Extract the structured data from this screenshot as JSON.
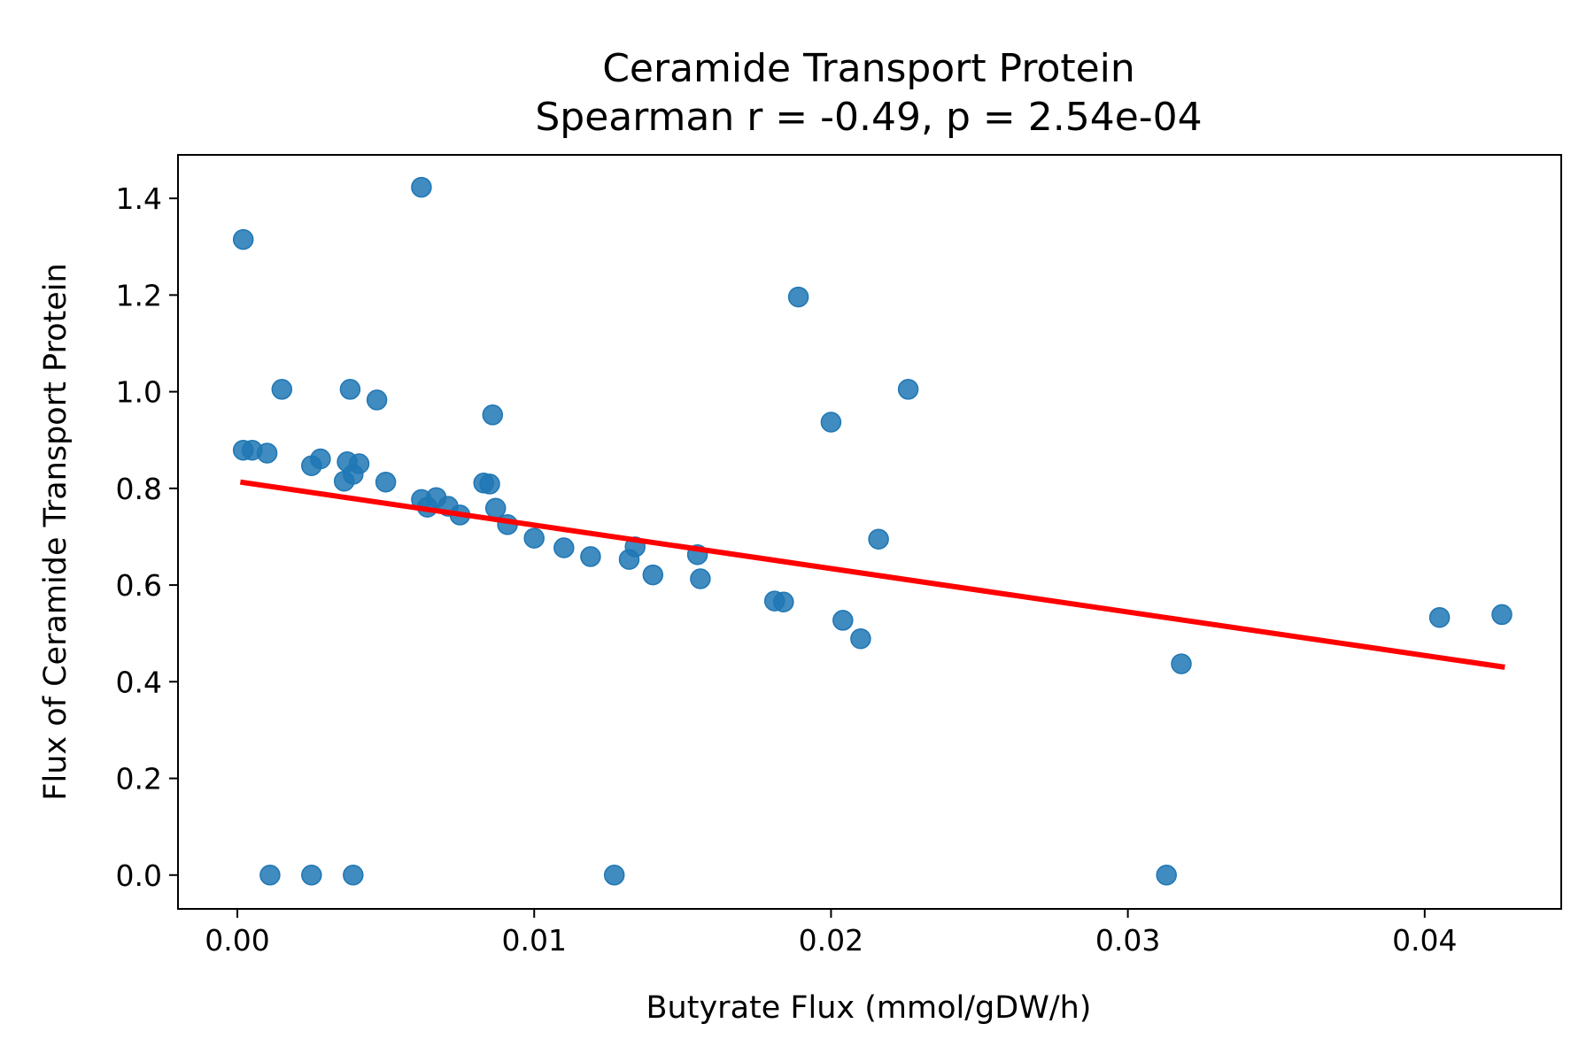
{
  "chart_data": {
    "type": "scatter",
    "title": "Ceramide Transport Protein",
    "subtitle": "Spearman r = -0.49, p = 2.54e-04",
    "xlabel": "Butyrate Flux (mmol/gDW/h)",
    "ylabel": "Flux of Ceramide Transport Protein",
    "xlim": [
      -0.002,
      0.0446
    ],
    "ylim": [
      -0.07,
      1.49
    ],
    "xticks": [
      0.0,
      0.01,
      0.02,
      0.03,
      0.04
    ],
    "xtick_labels": [
      "0.00",
      "0.01",
      "0.02",
      "0.03",
      "0.04"
    ],
    "yticks": [
      0.0,
      0.2,
      0.4,
      0.6,
      0.8,
      1.0,
      1.2,
      1.4
    ],
    "ytick_labels": [
      "0.0",
      "0.2",
      "0.4",
      "0.6",
      "0.8",
      "1.0",
      "1.2",
      "1.4"
    ],
    "grid": false,
    "legend": "none",
    "colors": {
      "points": "#1f77b4",
      "fit_line": "#ff0000",
      "axes": "#000000"
    },
    "series": [
      {
        "points": [
          [
            0.0002,
            1.315
          ],
          [
            0.0062,
            1.423
          ],
          [
            0.0189,
            1.196
          ],
          [
            0.0015,
            1.005
          ],
          [
            0.0038,
            1.005
          ],
          [
            0.0047,
            0.983
          ],
          [
            0.0086,
            0.952
          ],
          [
            0.0226,
            1.005
          ],
          [
            0.02,
            0.937
          ],
          [
            0.0002,
            0.879
          ],
          [
            0.0005,
            0.879
          ],
          [
            0.001,
            0.873
          ],
          [
            0.0025,
            0.847
          ],
          [
            0.0028,
            0.861
          ],
          [
            0.0037,
            0.855
          ],
          [
            0.0041,
            0.851
          ],
          [
            0.0039,
            0.829
          ],
          [
            0.0036,
            0.815
          ],
          [
            0.005,
            0.813
          ],
          [
            0.0083,
            0.811
          ],
          [
            0.0085,
            0.809
          ],
          [
            0.0062,
            0.777
          ],
          [
            0.0067,
            0.781
          ],
          [
            0.0064,
            0.761
          ],
          [
            0.0071,
            0.763
          ],
          [
            0.0075,
            0.745
          ],
          [
            0.0087,
            0.759
          ],
          [
            0.0091,
            0.725
          ],
          [
            0.01,
            0.697
          ],
          [
            0.011,
            0.677
          ],
          [
            0.0119,
            0.659
          ],
          [
            0.0134,
            0.679
          ],
          [
            0.0132,
            0.653
          ],
          [
            0.014,
            0.621
          ],
          [
            0.0155,
            0.663
          ],
          [
            0.0156,
            0.613
          ],
          [
            0.0181,
            0.567
          ],
          [
            0.0184,
            0.565
          ],
          [
            0.0216,
            0.695
          ],
          [
            0.0204,
            0.527
          ],
          [
            0.021,
            0.489
          ],
          [
            0.0318,
            0.437
          ],
          [
            0.0405,
            0.533
          ],
          [
            0.0426,
            0.539
          ],
          [
            0.0011,
            0.0
          ],
          [
            0.0025,
            0.0
          ],
          [
            0.0039,
            0.0
          ],
          [
            0.0127,
            0.0
          ],
          [
            0.0313,
            0.0
          ]
        ]
      }
    ],
    "fit_line": {
      "x": [
        0.0001,
        0.0427
      ],
      "y": [
        0.813,
        0.43
      ]
    }
  }
}
